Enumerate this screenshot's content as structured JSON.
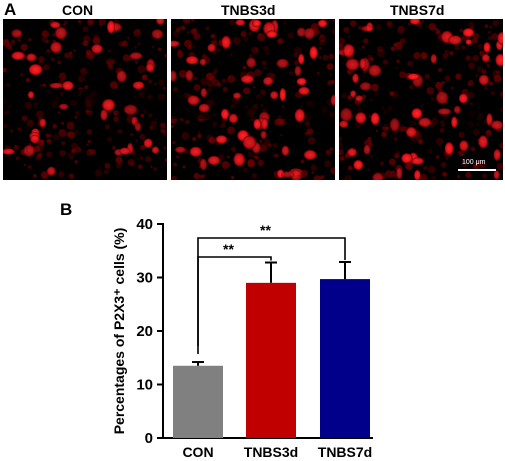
{
  "panel_a": {
    "letter": "A",
    "images": [
      {
        "label": "CON"
      },
      {
        "label": "TNBS3d"
      },
      {
        "label": "TNBS7d"
      }
    ],
    "scale_bar_text": "100 μm",
    "stain_color": "#e8101a"
  },
  "panel_b": {
    "letter": "B"
  },
  "chart_data": {
    "type": "bar",
    "categories": [
      "CON",
      "TNBS3d",
      "TNBS7d"
    ],
    "values": [
      13.5,
      29.0,
      29.7
    ],
    "errors": [
      0.7,
      3.8,
      3.2
    ],
    "colors": [
      "#808080",
      "#c00000",
      "#00008b"
    ],
    "ylabel": "Percentages of P2X3⁺ cells (%)",
    "ylim": [
      0,
      40
    ],
    "yticks": [
      "0",
      "10",
      "20",
      "30",
      "40"
    ],
    "significance": [
      {
        "from": "CON",
        "to": "TNBS3d",
        "label": "**"
      },
      {
        "from": "CON",
        "to": "TNBS7d",
        "label": "**"
      }
    ]
  }
}
